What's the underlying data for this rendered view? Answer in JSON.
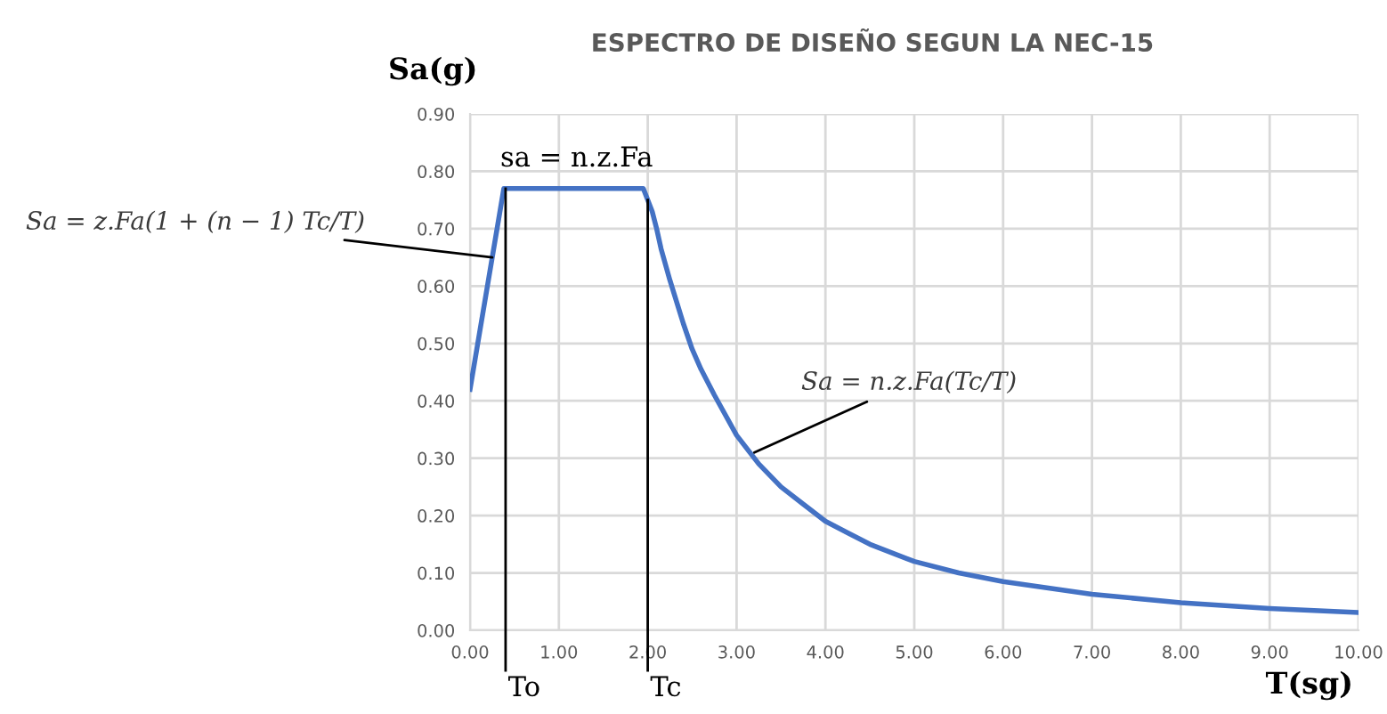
{
  "chart_data": {
    "type": "line",
    "title": "ESPECTRO DE DISEÑO SEGUN LA NEC-15",
    "xlabel": "T(sg)",
    "ylabel": "Sa(g)",
    "x": [
      0,
      0.38,
      1.95,
      2.05,
      2.1,
      2.15,
      2.25,
      2.4,
      2.5,
      2.6,
      2.75,
      3,
      3.25,
      3.5,
      3.75,
      4,
      4.25,
      4.5,
      5,
      5.5,
      6,
      7,
      8,
      9,
      10
    ],
    "series": [
      {
        "color": "#4472c4",
        "values": [
          0.42,
          0.77,
          0.77,
          0.73,
          0.7,
          0.665,
          0.61,
          0.535,
          0.49,
          0.455,
          0.41,
          0.34,
          0.29,
          0.25,
          0.22,
          0.19,
          0.17,
          0.15,
          0.12,
          0.1,
          0.085,
          0.063,
          0.048,
          0.038,
          0.031
        ]
      }
    ],
    "xlim": [
      0,
      10
    ],
    "xticks": [
      {
        "value": 0,
        "label": "0.00"
      },
      {
        "value": 1,
        "label": "1.00"
      },
      {
        "value": 2,
        "label": "2.00"
      },
      {
        "value": 3,
        "label": "3.00"
      },
      {
        "value": 4,
        "label": "4.00"
      },
      {
        "value": 5,
        "label": "5.00"
      },
      {
        "value": 6,
        "label": "6.00"
      },
      {
        "value": 7,
        "label": "7.00"
      },
      {
        "value": 8,
        "label": "8.00"
      },
      {
        "value": 9,
        "label": "9.00"
      },
      {
        "value": 10,
        "label": "10.00"
      }
    ],
    "ylim": [
      0,
      0.9
    ],
    "yticks": [
      {
        "value": 0,
        "label": "0.00"
      },
      {
        "value": 0.1,
        "label": "0.10"
      },
      {
        "value": 0.2,
        "label": "0.20"
      },
      {
        "value": 0.3,
        "label": "0.30"
      },
      {
        "value": 0.4,
        "label": "0.40"
      },
      {
        "value": 0.5,
        "label": "0.50"
      },
      {
        "value": 0.6,
        "label": "0.60"
      },
      {
        "value": 0.7,
        "label": "0.70"
      },
      {
        "value": 0.8,
        "label": "0.80"
      },
      {
        "value": 0.9,
        "label": "0.90"
      }
    ],
    "grid": true,
    "marker": "none",
    "line_style": "solid",
    "ref_lines": [
      {
        "axis": "x",
        "value": 0.4,
        "label": "To",
        "color": "#000000"
      },
      {
        "axis": "x",
        "value": 2.0,
        "label": "Tc",
        "color": "#000000"
      }
    ],
    "annotations": [
      {
        "text": "sa = n.z.Fa",
        "x": 1.2,
        "y": 0.77
      },
      {
        "text": "Sa = z.Fa(1 + (n − 1) Tc/T)",
        "x": 0.25,
        "y": 0.65
      },
      {
        "text": "Sa = n.z.Fa(Tc/T)",
        "x": 3.2,
        "y": 0.31
      }
    ]
  }
}
